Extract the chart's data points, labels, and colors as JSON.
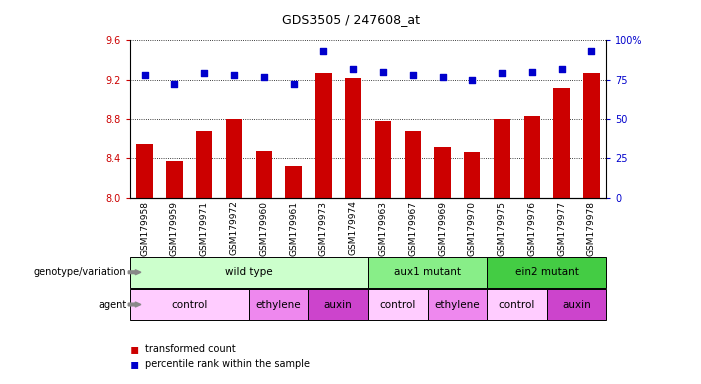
{
  "title": "GDS3505 / 247608_at",
  "samples": [
    "GSM179958",
    "GSM179959",
    "GSM179971",
    "GSM179972",
    "GSM179960",
    "GSM179961",
    "GSM179973",
    "GSM179974",
    "GSM179963",
    "GSM179967",
    "GSM179969",
    "GSM179970",
    "GSM179975",
    "GSM179976",
    "GSM179977",
    "GSM179978"
  ],
  "bar_values": [
    8.55,
    8.37,
    8.68,
    8.8,
    8.48,
    8.32,
    9.27,
    9.22,
    8.78,
    8.68,
    8.52,
    8.47,
    8.8,
    8.83,
    9.12,
    9.27
  ],
  "dot_values": [
    78,
    72,
    79,
    78,
    77,
    72,
    93,
    82,
    80,
    78,
    77,
    75,
    79,
    80,
    82,
    93
  ],
  "ylim_left": [
    8.0,
    9.6
  ],
  "ylim_right": [
    0,
    100
  ],
  "yticks_left": [
    8.0,
    8.4,
    8.8,
    9.2,
    9.6
  ],
  "yticks_right": [
    0,
    25,
    50,
    75,
    100
  ],
  "ytick_labels_right": [
    "0",
    "25",
    "50",
    "75",
    "100%"
  ],
  "bar_color": "#cc0000",
  "dot_color": "#0000cc",
  "left_axis_color": "#cc0000",
  "right_axis_color": "#0000cc",
  "genotype_groups": [
    {
      "label": "wild type",
      "start": 0,
      "end": 8,
      "color": "#ccffcc"
    },
    {
      "label": "aux1 mutant",
      "start": 8,
      "end": 12,
      "color": "#88ee88"
    },
    {
      "label": "ein2 mutant",
      "start": 12,
      "end": 16,
      "color": "#44cc44"
    }
  ],
  "agent_groups": [
    {
      "label": "control",
      "start": 0,
      "end": 4,
      "color": "#ffccff"
    },
    {
      "label": "ethylene",
      "start": 4,
      "end": 6,
      "color": "#ee88ee"
    },
    {
      "label": "auxin",
      "start": 6,
      "end": 8,
      "color": "#cc44cc"
    },
    {
      "label": "control",
      "start": 8,
      "end": 10,
      "color": "#ffccff"
    },
    {
      "label": "ethylene",
      "start": 10,
      "end": 12,
      "color": "#ee88ee"
    },
    {
      "label": "control",
      "start": 12,
      "end": 14,
      "color": "#ffccff"
    },
    {
      "label": "auxin",
      "start": 14,
      "end": 16,
      "color": "#cc44cc"
    }
  ],
  "xlabel_left": "genotype/variation",
  "xlabel_agent": "agent",
  "legend_bar_label": "transformed count",
  "legend_dot_label": "percentile rank within the sample",
  "title_fontsize": 9,
  "tick_fontsize": 7,
  "label_fontsize": 7,
  "annot_fontsize": 7.5,
  "bar_width": 0.55
}
